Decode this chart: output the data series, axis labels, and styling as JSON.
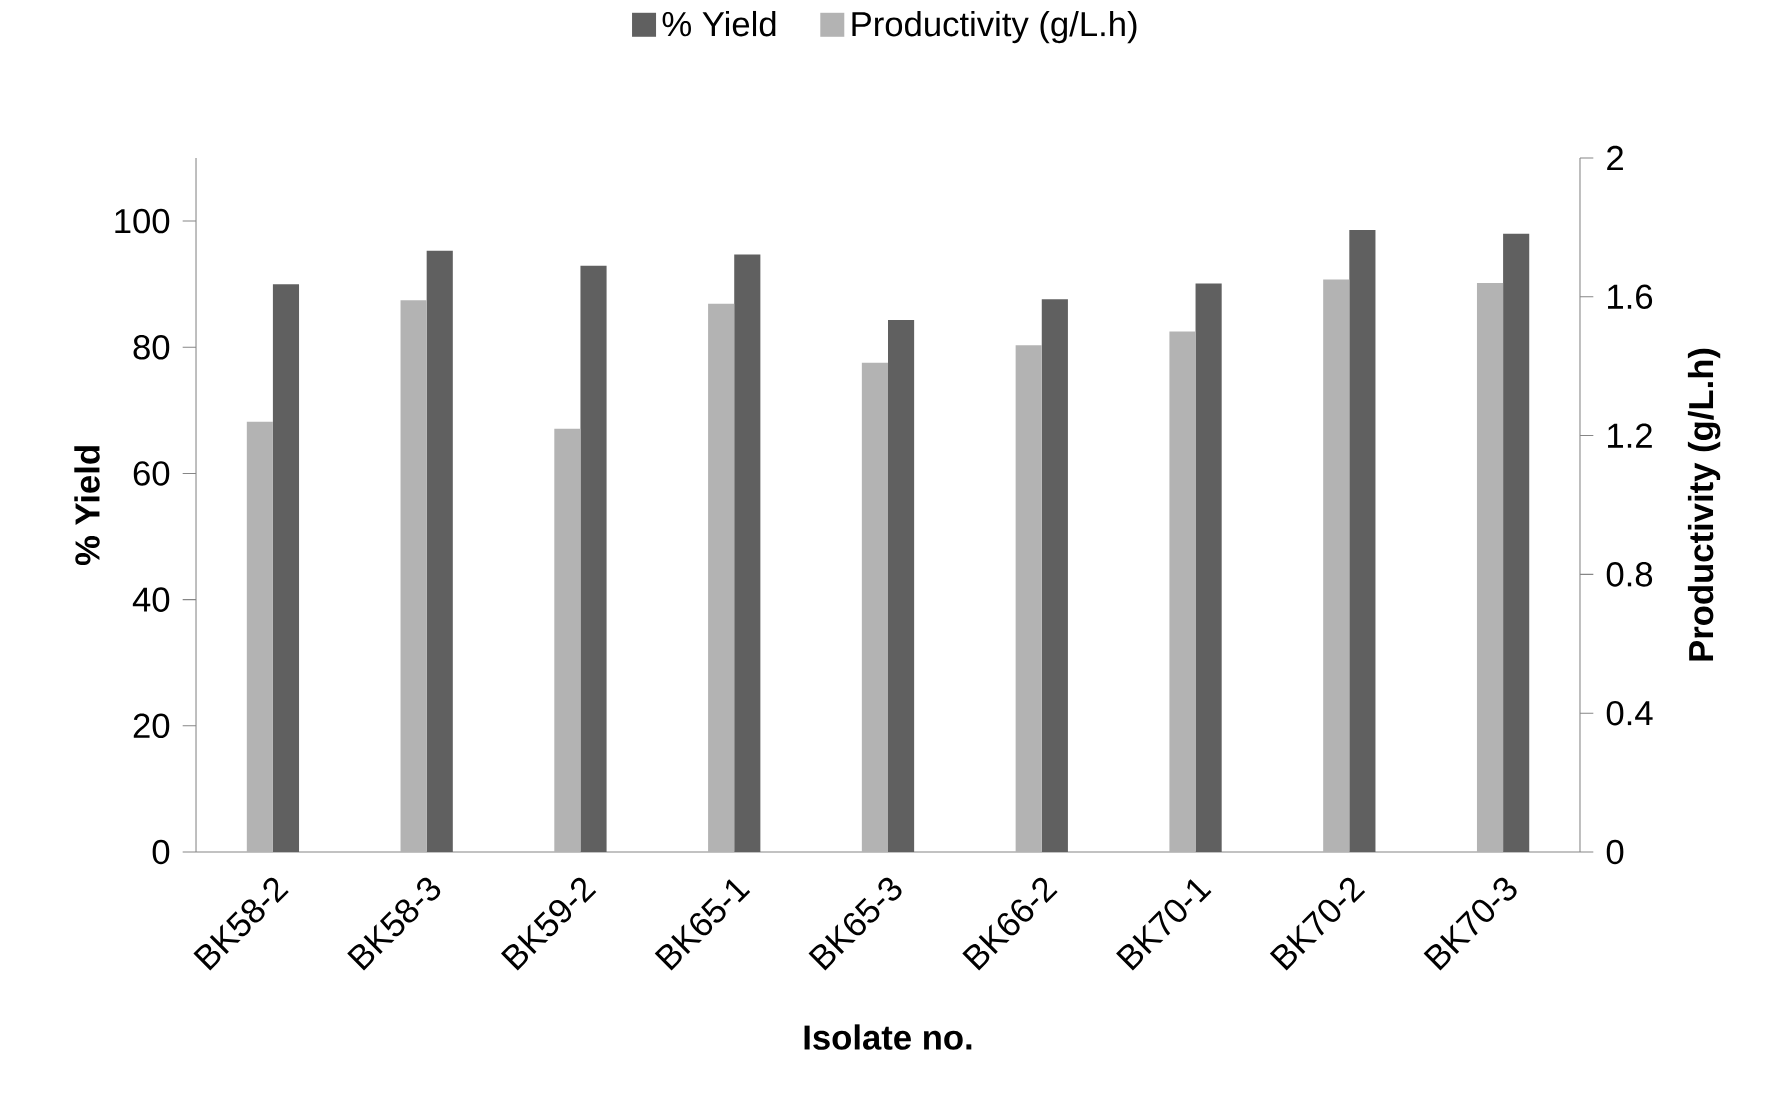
{
  "chart_data": {
    "type": "bar",
    "xlabel": "Isolate no.",
    "ylabel": "% Yield",
    "y2label": "Productivity (g/L.h)",
    "categories": [
      "BK58-2",
      "BK58-3",
      "BK59-2",
      "BK65-1",
      "BK65-3",
      "BK66-2",
      "BK70-1",
      "BK70-2",
      "BK70-3"
    ],
    "series": [
      {
        "name": "% Yield",
        "color": "#606060",
        "values": [
          90,
          95.3,
          92.9,
          94.7,
          84.3,
          87.6,
          90.1,
          98.6,
          98
        ]
      },
      {
        "name": "Productivity (g/L.h)",
        "color": "#b3b3b3",
        "axis": "y2",
        "values": [
          1.24,
          1.59,
          1.22,
          1.58,
          1.41,
          1.46,
          1.5,
          1.65,
          1.64
        ]
      }
    ],
    "ylim": [
      0,
      110
    ],
    "yticks": [
      0,
      20,
      40,
      60,
      80,
      100
    ],
    "y2lim": [
      0,
      2
    ],
    "y2ticks": [
      0,
      0.4,
      0.8,
      1.2,
      1.6,
      2
    ],
    "legend": "top"
  }
}
